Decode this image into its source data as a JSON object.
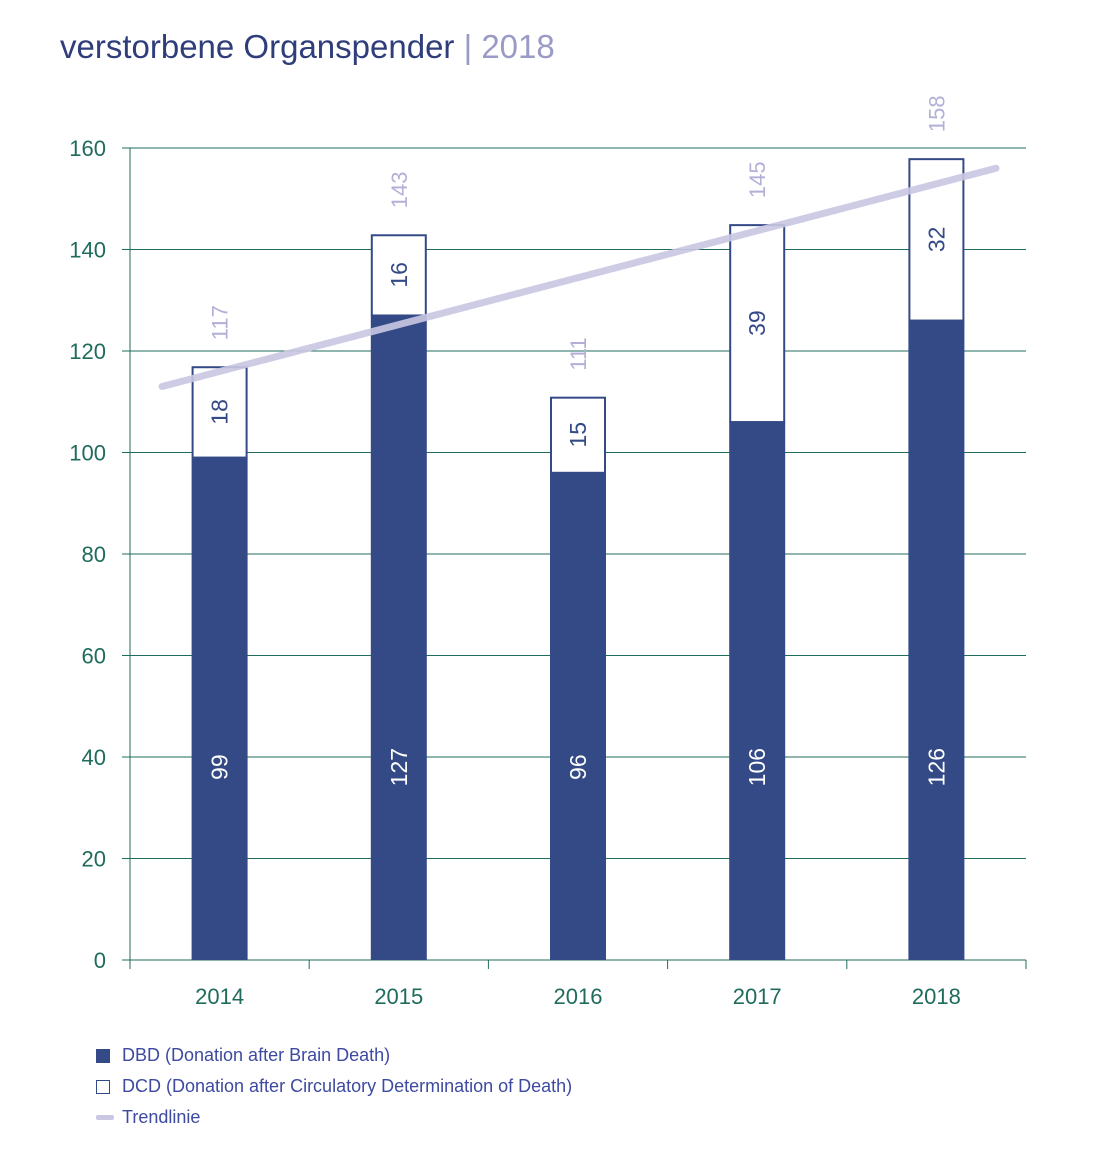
{
  "title": {
    "main": "verstorbene Organspender",
    "separator": "|",
    "year": "2018"
  },
  "colors": {
    "dbd": "#344a86",
    "dcd_fill": "#ffffff",
    "dcd_stroke": "#344a86",
    "trend": "#c9c7e3",
    "total_label": "#b2b0d8",
    "axis": "#1f6b5c",
    "grid": "#1f6b5c"
  },
  "chart_data": {
    "type": "bar",
    "stacked": true,
    "categories": [
      "2014",
      "2015",
      "2016",
      "2017",
      "2018"
    ],
    "series": [
      {
        "name": "DBD (Donation after Brain Death)",
        "values": [
          99,
          127,
          96,
          106,
          126
        ]
      },
      {
        "name": "DCD (Donation after Circulatory Determination of Death)",
        "values": [
          18,
          16,
          15,
          39,
          32
        ]
      }
    ],
    "totals": [
      117,
      143,
      111,
      145,
      158
    ],
    "trend": {
      "name": "Trendlinie",
      "start": 113,
      "end": 156
    },
    "ylim": [
      0,
      160
    ],
    "yticks": [
      0,
      20,
      40,
      60,
      80,
      100,
      120,
      140,
      160
    ],
    "grid": true,
    "legend_position": "bottom-left"
  }
}
